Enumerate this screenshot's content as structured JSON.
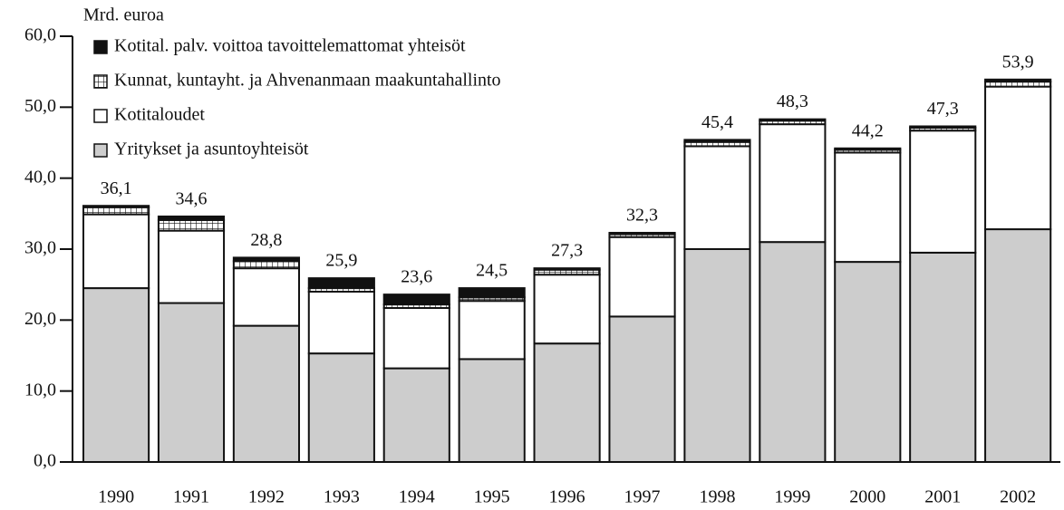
{
  "chart_data": {
    "type": "stacked_bar",
    "y_axis_label": "Mrd. euroa",
    "categories": [
      "1990",
      "1991",
      "1992",
      "1993",
      "1994",
      "1995",
      "1996",
      "1997",
      "1998",
      "1999",
      "2000",
      "2001",
      "2002"
    ],
    "series": [
      {
        "name": "Yritykset ja asuntoyhteisöt",
        "color": "#cdcdcd",
        "values": [
          24.5,
          22.4,
          19.2,
          15.3,
          13.2,
          14.5,
          16.7,
          20.5,
          30.0,
          31.0,
          28.2,
          29.5,
          32.8
        ]
      },
      {
        "name": "Kotitaloudet",
        "color": "#ffffff",
        "values": [
          10.4,
          10.2,
          8.1,
          8.7,
          8.5,
          8.2,
          9.7,
          11.2,
          14.5,
          16.6,
          15.4,
          17.2,
          20.1
        ]
      },
      {
        "name": "Kunnat, kuntayht. ja Ahvenanmaan maakuntahallinto",
        "color": "#ffffff",
        "pattern": "grid",
        "values": [
          1.0,
          1.5,
          1.0,
          0.5,
          0.5,
          0.5,
          0.7,
          0.4,
          0.6,
          0.5,
          0.4,
          0.4,
          0.7
        ]
      },
      {
        "name": "Kotital. palv. voittoa tavoittelemattomat yhteisöt",
        "color": "#111111",
        "values": [
          0.2,
          0.5,
          0.5,
          1.4,
          1.4,
          1.3,
          0.2,
          0.2,
          0.3,
          0.2,
          0.2,
          0.2,
          0.3
        ]
      }
    ],
    "totals": [
      36.1,
      34.6,
      28.8,
      25.9,
      23.6,
      24.5,
      27.3,
      32.3,
      45.4,
      48.3,
      44.2,
      47.3,
      53.9
    ],
    "value_labels": [
      "36,1",
      "34,6",
      "28,8",
      "25,9",
      "23,6",
      "24,5",
      "27,3",
      "32,3",
      "45,4",
      "48,3",
      "44,2",
      "47,3",
      "53,9"
    ],
    "ylim": [
      0,
      60
    ],
    "yticks": [
      {
        "value": 0,
        "label": "0,0"
      },
      {
        "value": 10,
        "label": "10,0"
      },
      {
        "value": 20,
        "label": "20,0"
      },
      {
        "value": 30,
        "label": "30,0"
      },
      {
        "value": 40,
        "label": "40,0"
      },
      {
        "value": 50,
        "label": "50,0"
      },
      {
        "value": 60,
        "label": "60,0"
      }
    ],
    "legend": "top-left"
  }
}
